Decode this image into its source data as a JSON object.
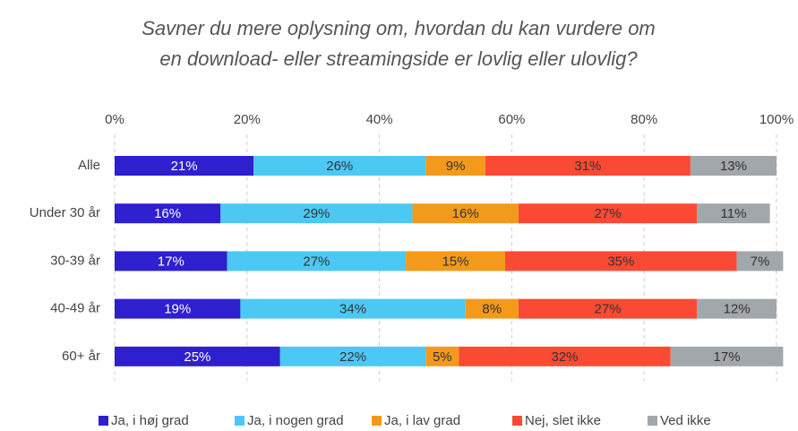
{
  "chart_data": {
    "type": "stacked_barh",
    "title": [
      "Savner du mere oplysning om, hvordan du kan vurdere om",
      "en download- eller streamingside er lovlig eller ulovlig?"
    ],
    "categories": [
      "Alle",
      "Under 30 år",
      "30-39 år",
      "40-49 år",
      "60+ år"
    ],
    "series": [
      {
        "name": "Ja, i høj grad",
        "color": "#2e1fcf",
        "values": [
          21,
          16,
          17,
          19,
          25
        ],
        "value_labels": [
          "21%",
          "16%",
          "17%",
          "19%",
          "25%"
        ]
      },
      {
        "name": "Ja, i nogen grad",
        "color": "#4cc8f5",
        "values": [
          26,
          29,
          27,
          34,
          22
        ],
        "value_labels": [
          "26%",
          "29%",
          "27%",
          "34%",
          "22%"
        ]
      },
      {
        "name": "Ja, i lav grad",
        "color": "#f39a1b",
        "values": [
          9,
          16,
          15,
          8,
          5
        ],
        "value_labels": [
          "9%",
          "16%",
          "15%",
          "8%",
          "5%"
        ]
      },
      {
        "name": "Nej, slet ikke",
        "color": "#fb4a33",
        "values": [
          31,
          27,
          35,
          27,
          32
        ],
        "value_labels": [
          "31%",
          "27%",
          "35%",
          "27%",
          "32%"
        ]
      },
      {
        "name": "Ved ikke",
        "color": "#a2a7ab",
        "values": [
          13,
          11,
          7,
          12,
          17
        ],
        "value_labels": [
          "13%",
          "11%",
          "7%",
          "12%",
          "17%"
        ]
      }
    ],
    "xlim": [
      0,
      100
    ],
    "xticks": [
      {
        "value": 0,
        "label": "0%"
      },
      {
        "value": 20,
        "label": "20%"
      },
      {
        "value": 40,
        "label": "40%"
      },
      {
        "value": 60,
        "label": "60%"
      },
      {
        "value": 80,
        "label": "80%"
      },
      {
        "value": 100,
        "label": "100%"
      }
    ],
    "grid": true,
    "legend": "bottom"
  }
}
